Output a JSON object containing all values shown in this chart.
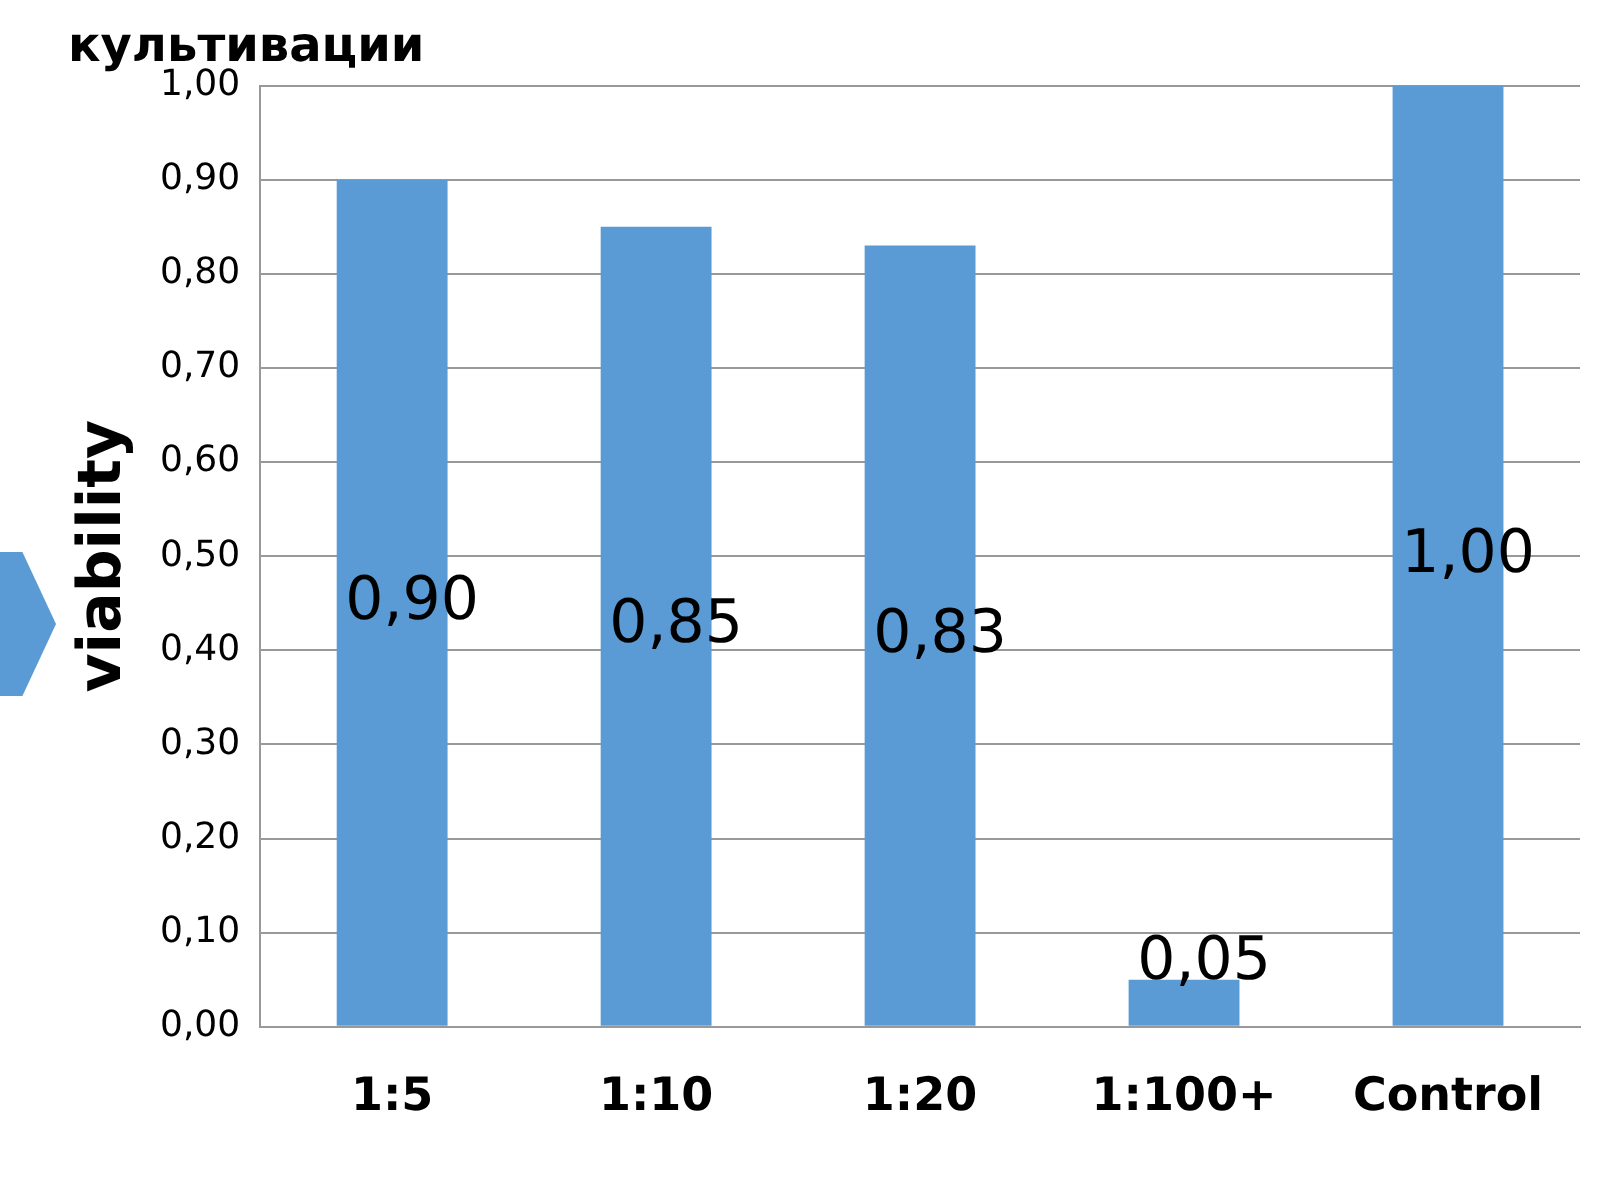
{
  "chart_data": {
    "type": "bar",
    "title": "культивации",
    "ylabel": "viability",
    "categories": [
      "1:5",
      "1:10",
      "1:20",
      "1:100+",
      "Control"
    ],
    "values": [
      0.9,
      0.85,
      0.83,
      0.05,
      1.0
    ],
    "value_labels": [
      "0,90",
      "0,85",
      "0,83",
      "0,05",
      "1,00"
    ],
    "color": "#5b9bd5",
    "ylim": [
      0,
      1
    ],
    "yticks": [
      {
        "value": 0,
        "label": "0,00"
      },
      {
        "value": 0.1,
        "label": "0,10"
      },
      {
        "value": 0.2,
        "label": "0,20"
      },
      {
        "value": 0.3,
        "label": "0,30"
      },
      {
        "value": 0.4,
        "label": "0,40"
      },
      {
        "value": 0.5,
        "label": "0,50"
      },
      {
        "value": 0.6,
        "label": "0,60"
      },
      {
        "value": 0.7,
        "label": "0,70"
      },
      {
        "value": 0.8,
        "label": "0,80"
      },
      {
        "value": 0.9,
        "label": "0,90"
      },
      {
        "value": 1,
        "label": "1,00"
      }
    ],
    "grid": "y",
    "legend": false
  }
}
